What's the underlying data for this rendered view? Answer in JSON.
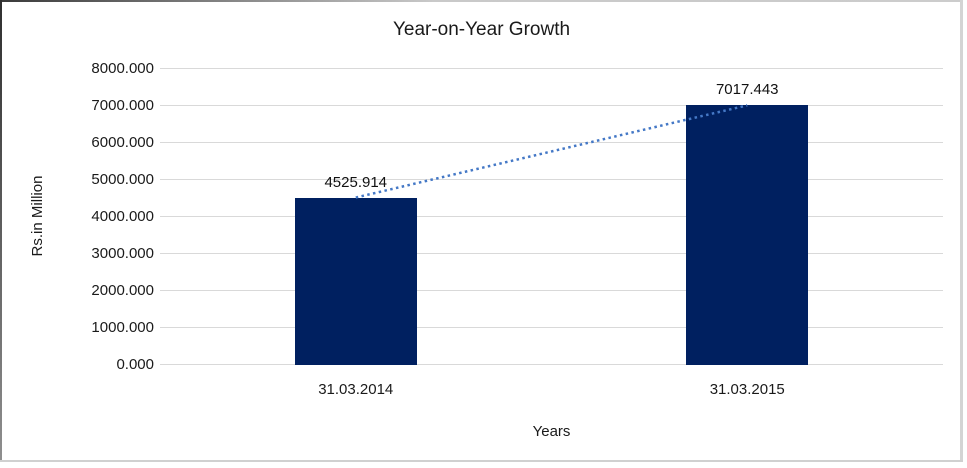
{
  "chart_data": {
    "type": "bar",
    "title": "Year-on-Year Growth",
    "categories": [
      "31.03.2014",
      "31.03.2015"
    ],
    "values": [
      4525.914,
      7017.443
    ],
    "data_labels": [
      "4525.914",
      "7017.443"
    ],
    "xlabel": "Years",
    "ylabel": "Rs.in Million",
    "ylim": [
      0,
      8000
    ],
    "ytick_labels": [
      "0.000",
      "1000.000",
      "2000.000",
      "3000.000",
      "4000.000",
      "5000.000",
      "6000.000",
      "7000.000",
      "8000.000"
    ],
    "grid": true,
    "legend_position": "none",
    "trendline": {
      "type": "linear",
      "style": "dotted"
    },
    "colors": {
      "bar": "#002060",
      "gridline": "#D9D9D9",
      "trendline": "#4478C6",
      "text": "#1A1A1A"
    }
  }
}
